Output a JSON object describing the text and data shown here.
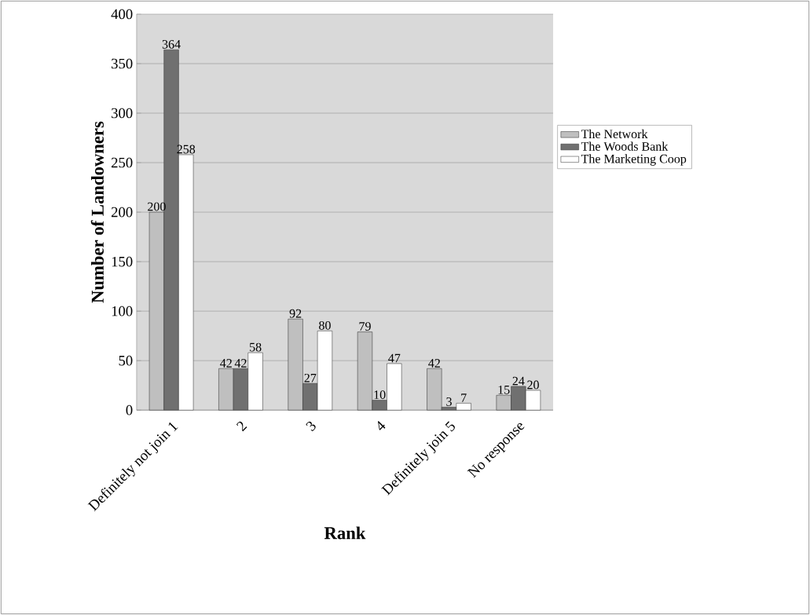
{
  "chart_data": {
    "type": "bar",
    "xlabel": "Rank",
    "ylabel": "Number of Landowners",
    "categories": [
      "Definitely not join 1",
      "2",
      "3",
      "4",
      "Definitely join 5",
      "No response"
    ],
    "series": [
      {
        "name": "The Network",
        "color": "#bfbfbf",
        "values": [
          200,
          42,
          92,
          79,
          42,
          15
        ]
      },
      {
        "name": "The Woods Bank",
        "color": "#707070",
        "values": [
          364,
          42,
          27,
          10,
          3,
          24
        ]
      },
      {
        "name": "The Marketing Coop",
        "color": "#ffffff",
        "values": [
          258,
          58,
          80,
          47,
          7,
          20
        ]
      }
    ],
    "ylim": [
      0,
      400
    ],
    "yticks": [
      0,
      50,
      100,
      150,
      200,
      250,
      300,
      350,
      400
    ],
    "grid": "y",
    "legend": "right",
    "data_labels": true
  }
}
